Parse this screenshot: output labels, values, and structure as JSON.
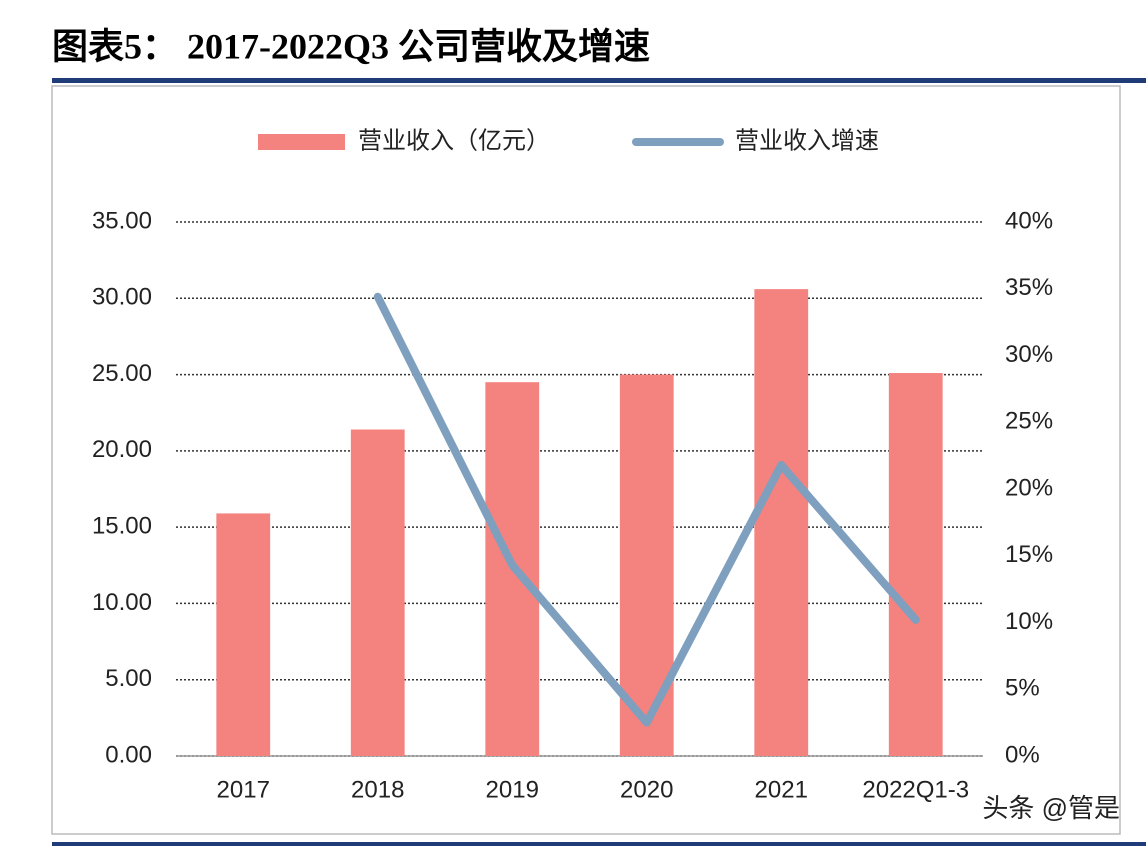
{
  "chart_data": {
    "type": "bar-line",
    "title": "图表5：   2017-2022Q3 公司营收及增速",
    "categories": [
      "2017",
      "2018",
      "2019",
      "2020",
      "2021",
      "2022Q1-3"
    ],
    "series": [
      {
        "name": "营业收入（亿元）",
        "type": "bar",
        "color": "#f4827f",
        "values": [
          15.9,
          21.4,
          24.5,
          25.0,
          30.6,
          25.1
        ]
      },
      {
        "name": "营业收入增速",
        "type": "line",
        "axis": "y2",
        "color": "#7f9fbf",
        "values": [
          null,
          34.4,
          14.3,
          2.5,
          21.8,
          10.2
        ]
      }
    ],
    "ylim": [
      0,
      35
    ],
    "yticks": [
      {
        "value": 0,
        "label": "0.00"
      },
      {
        "value": 5,
        "label": "5.00"
      },
      {
        "value": 10,
        "label": "10.00"
      },
      {
        "value": 15,
        "label": "15.00"
      },
      {
        "value": 20,
        "label": "20.00"
      },
      {
        "value": 25,
        "label": "25.00"
      },
      {
        "value": 30,
        "label": "30.00"
      },
      {
        "value": 35,
        "label": "35.00"
      }
    ],
    "y2lim": [
      0,
      40
    ],
    "y2ticks": [
      {
        "value": 0,
        "label": "0%"
      },
      {
        "value": 5,
        "label": "5%"
      },
      {
        "value": 10,
        "label": "10%"
      },
      {
        "value": 15,
        "label": "15%"
      },
      {
        "value": 20,
        "label": "20%"
      },
      {
        "value": 25,
        "label": "25%"
      },
      {
        "value": 30,
        "label": "30%"
      },
      {
        "value": 35,
        "label": "35%"
      },
      {
        "value": 40,
        "label": "40%"
      }
    ],
    "grid": true,
    "legend": "top",
    "watermark": "头条 @管是"
  }
}
